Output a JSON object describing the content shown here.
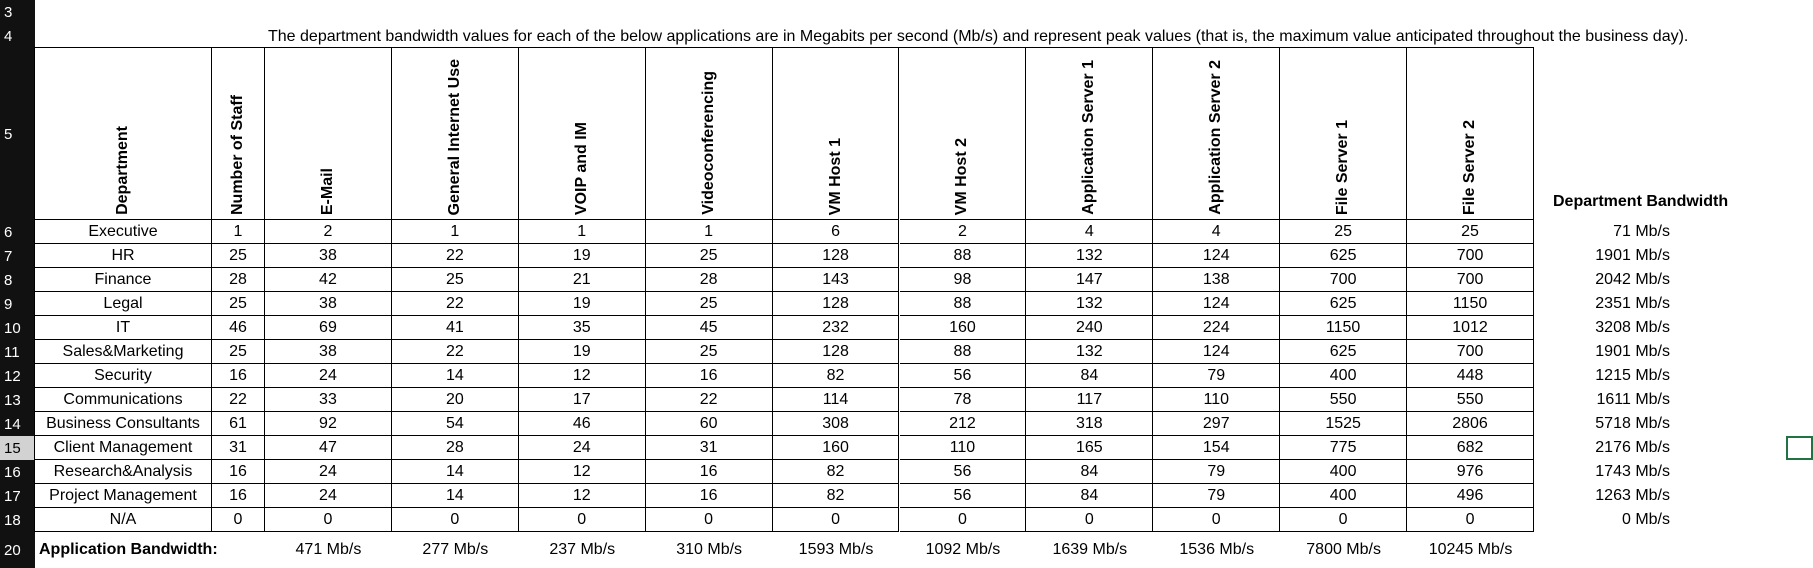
{
  "row_numbers": [
    "3",
    "4",
    "5",
    "6",
    "7",
    "8",
    "9",
    "10",
    "11",
    "12",
    "13",
    "14",
    "15",
    "16",
    "17",
    "18",
    "20"
  ],
  "note": "The department bandwidth values for each of the below applications are in Megabits per second (Mb/s) and represent peak values (that is, the maximum value anticipated throughout the business day).",
  "table": {
    "headers": [
      "Department",
      "Number of Staff",
      "E-Mail",
      "General Internet Use",
      "VOIP and IM",
      "Videoconferencing",
      "VM Host 1",
      "VM Host 2",
      "Application Server 1",
      "Application Server 2",
      "File Server 1",
      "File Server 2"
    ],
    "rows": [
      [
        "Executive",
        1,
        2,
        1,
        1,
        1,
        6,
        2,
        4,
        4,
        25,
        25
      ],
      [
        "HR",
        25,
        38,
        22,
        19,
        25,
        128,
        88,
        132,
        124,
        625,
        700
      ],
      [
        "Finance",
        28,
        42,
        25,
        21,
        28,
        143,
        98,
        147,
        138,
        700,
        700
      ],
      [
        "Legal",
        25,
        38,
        22,
        19,
        25,
        128,
        88,
        132,
        124,
        625,
        1150
      ],
      [
        "IT",
        46,
        69,
        41,
        35,
        45,
        232,
        160,
        240,
        224,
        1150,
        1012
      ],
      [
        "Sales&Marketing",
        25,
        38,
        22,
        19,
        25,
        128,
        88,
        132,
        124,
        625,
        700
      ],
      [
        "Security",
        16,
        24,
        14,
        12,
        16,
        82,
        56,
        84,
        79,
        400,
        448
      ],
      [
        "Communications",
        22,
        33,
        20,
        17,
        22,
        114,
        78,
        117,
        110,
        550,
        550
      ],
      [
        "Business Consultants",
        61,
        92,
        54,
        46,
        60,
        308,
        212,
        318,
        297,
        1525,
        2806
      ],
      [
        "Client Management",
        31,
        47,
        28,
        24,
        31,
        160,
        110,
        165,
        154,
        775,
        682
      ],
      [
        "Research&Analysis",
        16,
        24,
        14,
        12,
        16,
        82,
        56,
        84,
        79,
        400,
        976
      ],
      [
        "Project Management",
        16,
        24,
        14,
        12,
        16,
        82,
        56,
        84,
        79,
        400,
        496
      ],
      [
        "N/A",
        0,
        0,
        0,
        0,
        0,
        0,
        0,
        0,
        0,
        0,
        0
      ]
    ]
  },
  "department_bandwidth": {
    "title": "Department Bandwidth",
    "values": [
      "71 Mb/s",
      "1901 Mb/s",
      "2042 Mb/s",
      "2351 Mb/s",
      "3208 Mb/s",
      "1901 Mb/s",
      "1215 Mb/s",
      "1611 Mb/s",
      "5718 Mb/s",
      "2176 Mb/s",
      "1743 Mb/s",
      "1263 Mb/s",
      "0 Mb/s"
    ]
  },
  "totals": {
    "label": "Application Bandwidth:",
    "values": [
      "471 Mb/s",
      "277 Mb/s",
      "237 Mb/s",
      "310 Mb/s",
      "1593 Mb/s",
      "1092 Mb/s",
      "1639 Mb/s",
      "1536 Mb/s",
      "7800 Mb/s",
      "10245 Mb/s"
    ]
  }
}
